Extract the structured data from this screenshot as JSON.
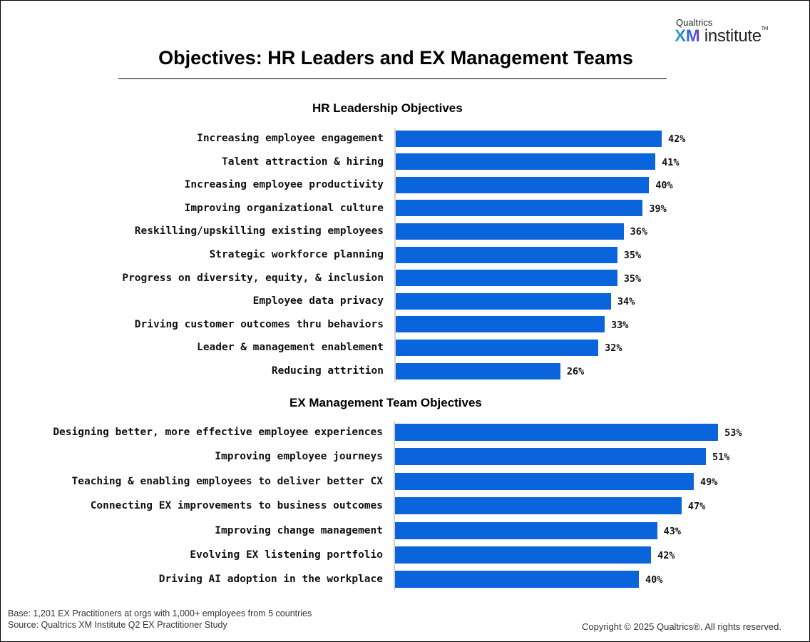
{
  "logo": {
    "top": "Qualtrics",
    "xm": "XM",
    "word": "institute",
    "tm": "TM"
  },
  "chart_data": [
    {
      "type": "bar",
      "orientation": "horizontal",
      "title": "HR Leadership Objectives",
      "unit": "%",
      "color": "#0a64dc",
      "categories": [
        "Increasing employee engagement",
        "Talent attraction & hiring",
        "Increasing employee productivity",
        "Improving organizational culture",
        "Reskilling/upskilling existing employees",
        "Strategic workforce planning",
        "Progress on diversity, equity, & inclusion",
        "Employee data privacy",
        "Driving customer outcomes thru behaviors",
        "Leader & management enablement",
        "Reducing attrition"
      ],
      "values": [
        42,
        41,
        40,
        39,
        36,
        35,
        35,
        34,
        33,
        32,
        26
      ]
    },
    {
      "type": "bar",
      "orientation": "horizontal",
      "title": "EX Management Team Objectives",
      "unit": "%",
      "color": "#0a64dc",
      "categories": [
        "Designing better, more effective employee experiences",
        "Improving employee journeys",
        "Teaching & enabling employees to deliver better CX",
        "Connecting EX improvements to business outcomes",
        "Improving change management",
        "Evolving EX listening portfolio",
        "Driving AI adoption in the workplace"
      ],
      "values": [
        53,
        51,
        49,
        47,
        43,
        42,
        40
      ]
    }
  ],
  "title": "Objectives: HR Leaders and EX Management Teams",
  "footer": {
    "base": "Base: 1,201 EX Practitioners at orgs with 1,000+ employees from 5 countries",
    "source": "Source: Qualtrics XM Institute Q2 EX Practitioner Study",
    "copyright": "Copyright © 2025 Qualtrics®. All rights reserved."
  }
}
